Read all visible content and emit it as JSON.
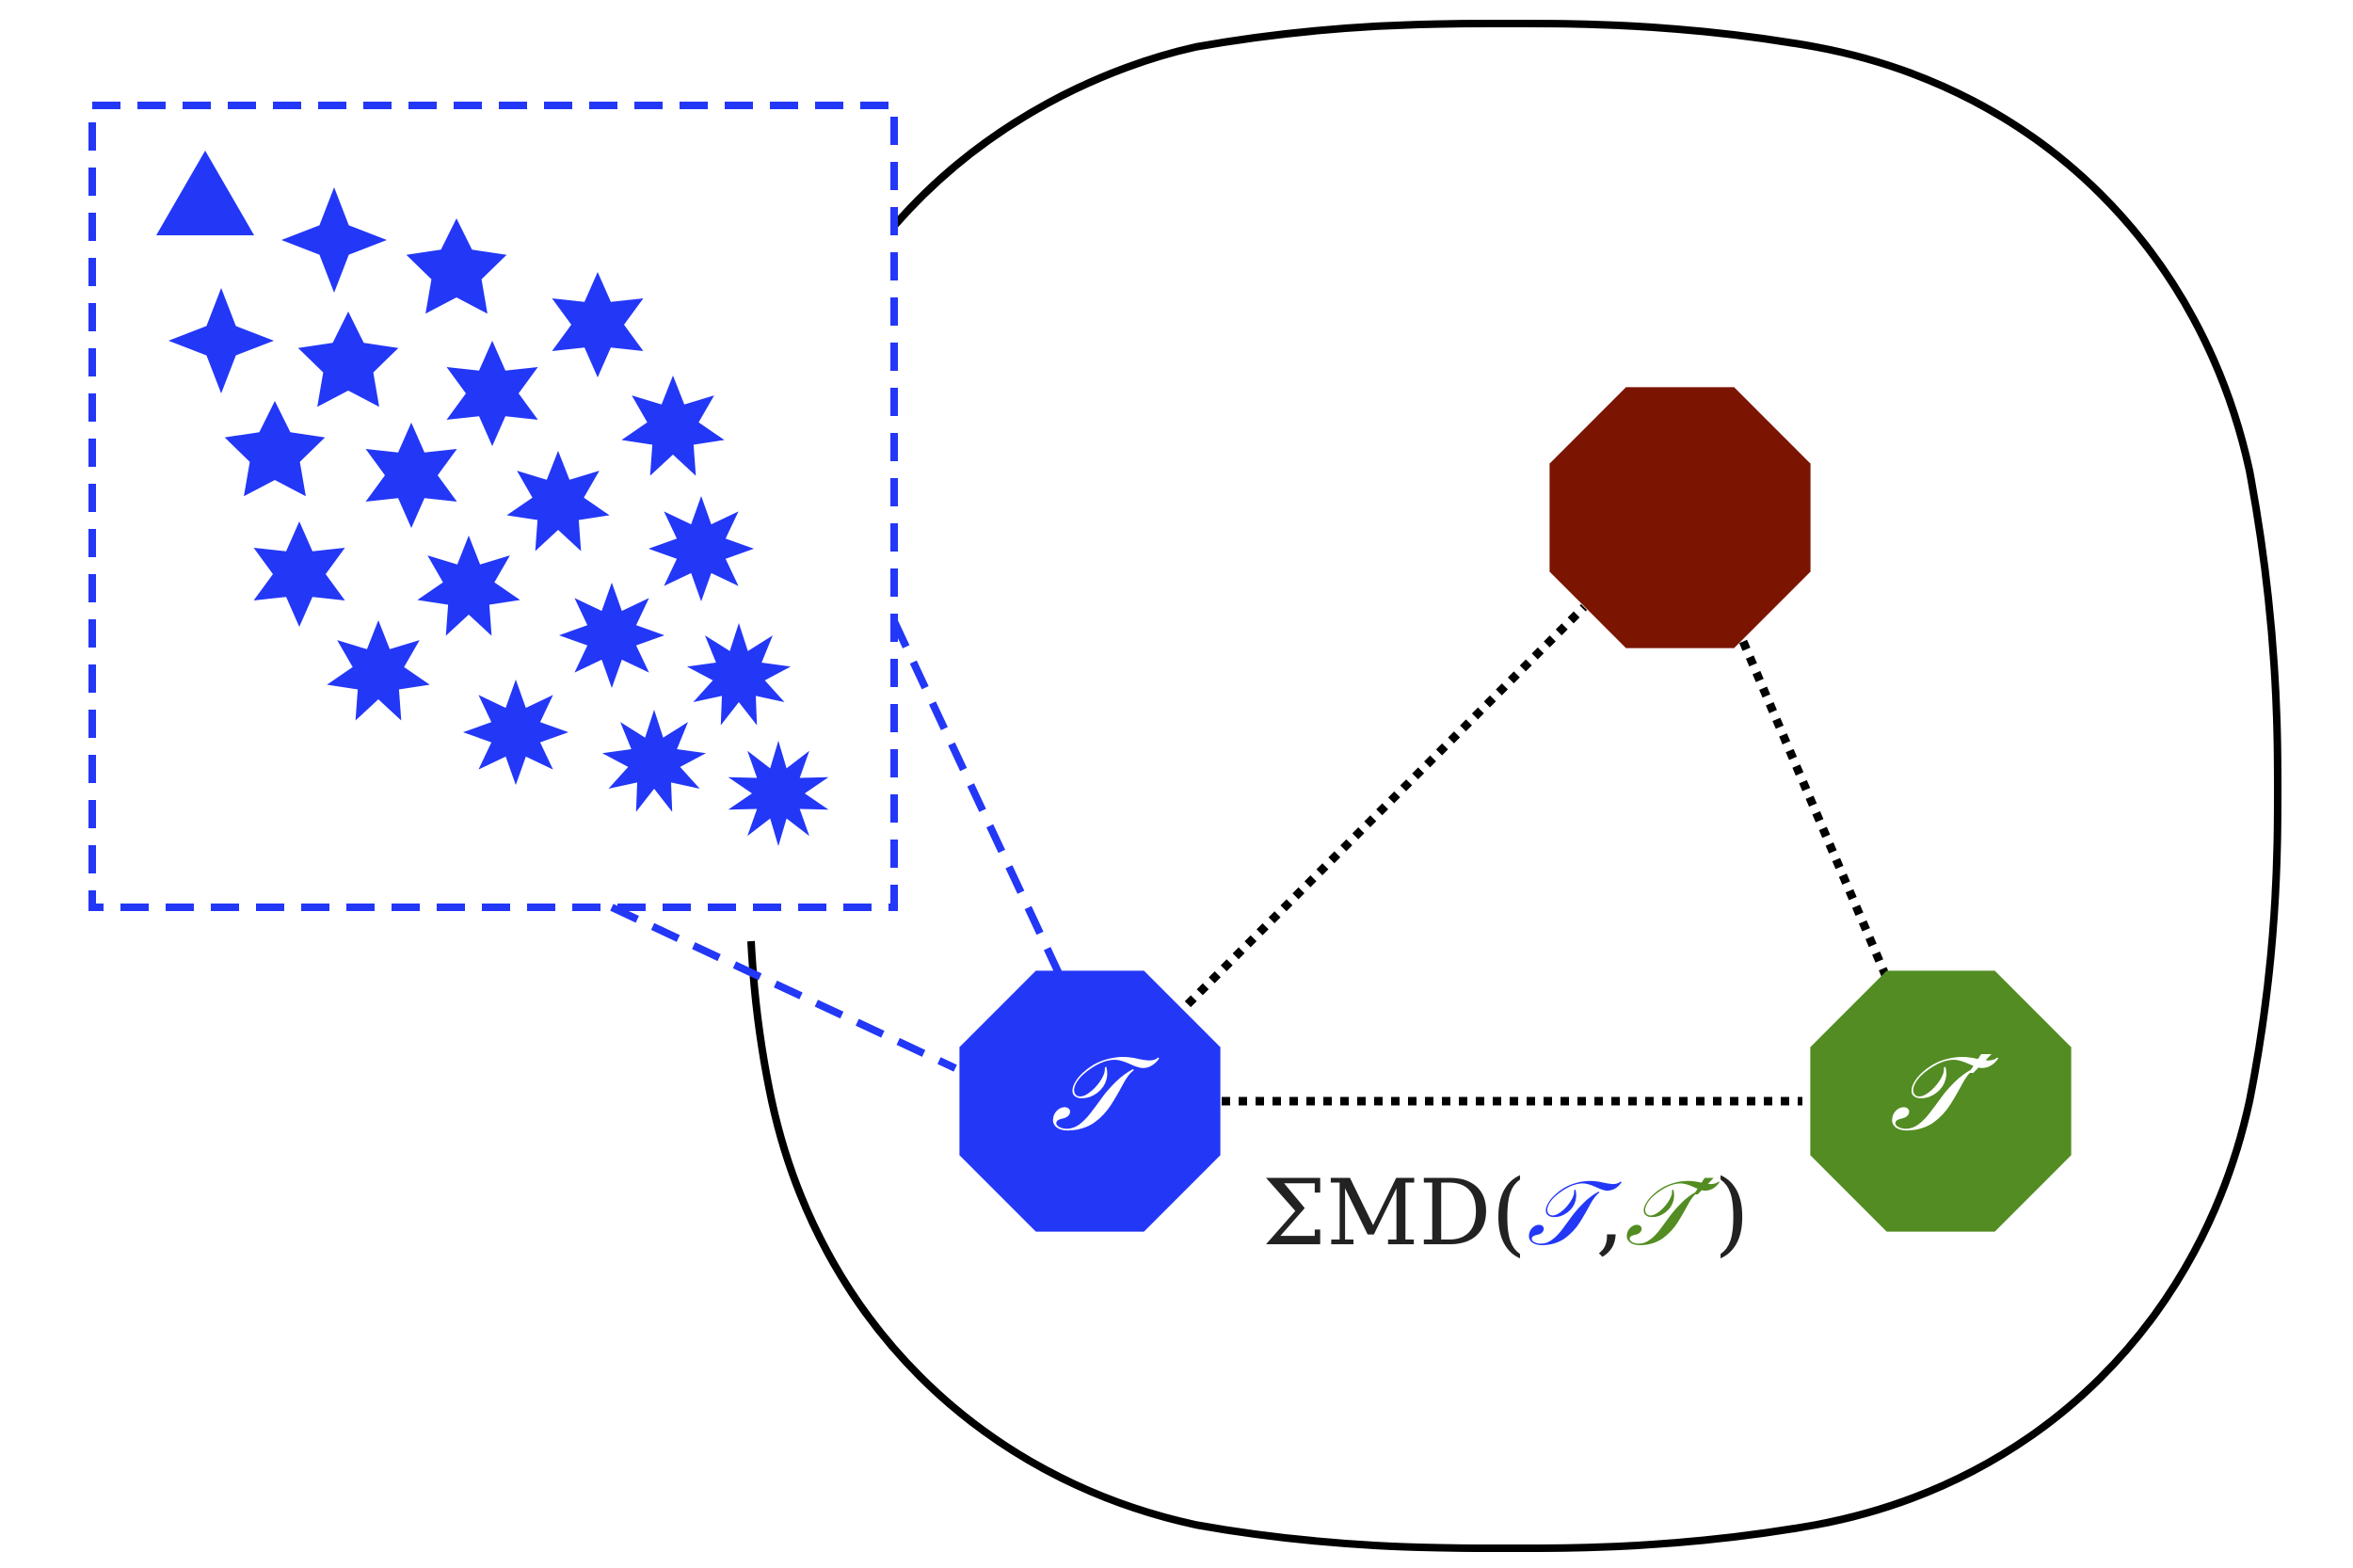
{
  "colors": {
    "blue": "#2337f7",
    "green": "#528c22",
    "darkred": "#7b1501",
    "black": "#000000",
    "white": "#ffffff"
  },
  "nodes": {
    "T": {
      "label": "𝒯",
      "color": "#2337f7"
    },
    "T_prime": {
      "label": "𝒯′",
      "color": "#528c22"
    },
    "top": {
      "label": "",
      "color": "#7b1501"
    }
  },
  "edge_label": {
    "prefix": "ΣMD(",
    "arg1": "𝒯",
    "sep": ",",
    "arg2": "𝒯′",
    "suffix": ")"
  },
  "stars": {
    "color": "#2337f7",
    "point_counts": [
      3,
      4,
      5,
      6,
      4,
      5,
      6,
      7,
      5,
      6,
      7,
      8,
      6,
      7,
      8,
      9,
      7,
      8,
      9,
      10,
      8,
      9,
      10,
      11
    ]
  }
}
